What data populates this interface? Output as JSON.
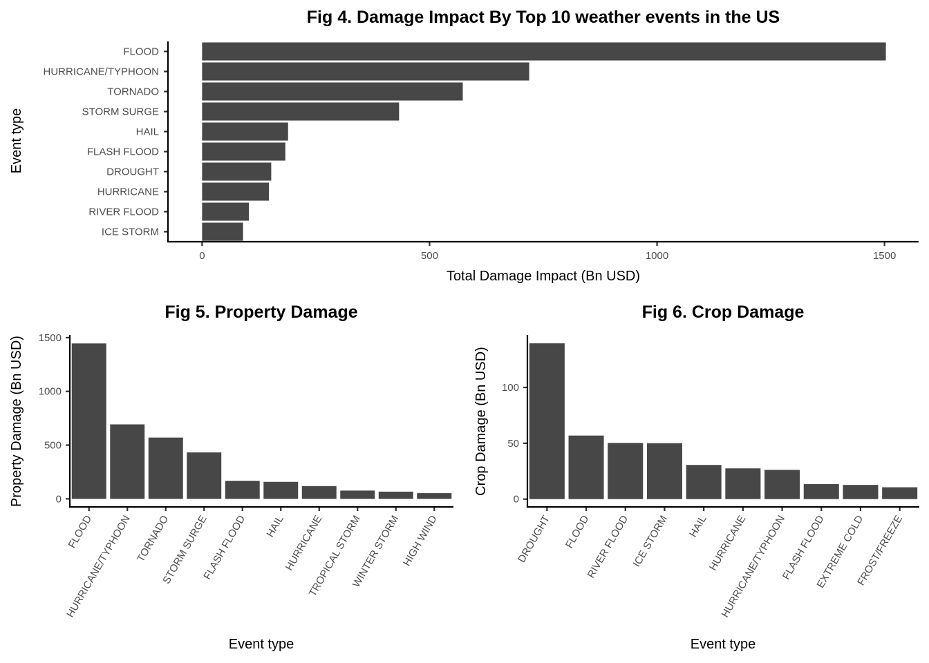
{
  "colors": {
    "bar": "#474747",
    "axis": "#000000",
    "tick_label": "#4d4d4d",
    "background": "#ffffff"
  },
  "chart_data": [
    {
      "id": "fig4",
      "type": "bar",
      "orientation": "horizontal",
      "title": "Fig 4. Damage Impact By Top 10 weather events in the US",
      "xlabel": "Total Damage Impact (Bn USD)",
      "ylabel": "Event type",
      "categories": [
        "FLOOD",
        "HURRICANE/TYPHOON",
        "TORNADO",
        "STORM SURGE",
        "HAIL",
        "FLASH FLOOD",
        "DROUGHT",
        "HURRICANE",
        "RIVER FLOOD",
        "ICE STORM"
      ],
      "values": [
        1503,
        719,
        573,
        433,
        189,
        183,
        152,
        147,
        103,
        90
      ],
      "xlim": [
        -75,
        1575
      ],
      "ticks": [
        0,
        500,
        1000,
        1500
      ],
      "tick_labels": [
        "0",
        "500",
        "1000",
        "1500"
      ],
      "grid": false
    },
    {
      "id": "fig5",
      "type": "bar",
      "orientation": "vertical",
      "title": "Fig 5. Property Damage",
      "xlabel": "Event type",
      "ylabel": "Property Damage (Bn USD)",
      "categories": [
        "FLOOD",
        "HURRICANE/TYPHOON",
        "TORNADO",
        "STORM SURGE",
        "FLASH FLOOD",
        "HAIL",
        "HURRICANE",
        "TROPICAL STORM",
        "WINTER STORM",
        "HIGH WIND"
      ],
      "values": [
        1446,
        693,
        570,
        432,
        168,
        158,
        119,
        77,
        67,
        53
      ],
      "ylim": [
        -75,
        1525
      ],
      "ticks": [
        0,
        500,
        1000,
        1500
      ],
      "tick_labels": [
        "0",
        "500",
        "1000",
        "1500"
      ],
      "grid": false
    },
    {
      "id": "fig6",
      "type": "bar",
      "orientation": "vertical",
      "title": "Fig 6. Crop Damage",
      "xlabel": "Event type",
      "ylabel": "Crop Damage (Bn USD)",
      "categories": [
        "DROUGHT",
        "FLOOD",
        "RIVER FLOOD",
        "ICE STORM",
        "HAIL",
        "HURRICANE",
        "HURRICANE/TYPHOON",
        "FLASH FLOOD",
        "EXTREME COLD",
        "FROST/FREEZE"
      ],
      "values": [
        139.5,
        56.9,
        50.3,
        50.1,
        30.6,
        27.5,
        26.2,
        13.4,
        12.7,
        10.6
      ],
      "ylim": [
        -7,
        147
      ],
      "ticks": [
        0,
        50,
        100
      ],
      "tick_labels": [
        "0",
        "50",
        "100"
      ],
      "grid": false
    }
  ]
}
